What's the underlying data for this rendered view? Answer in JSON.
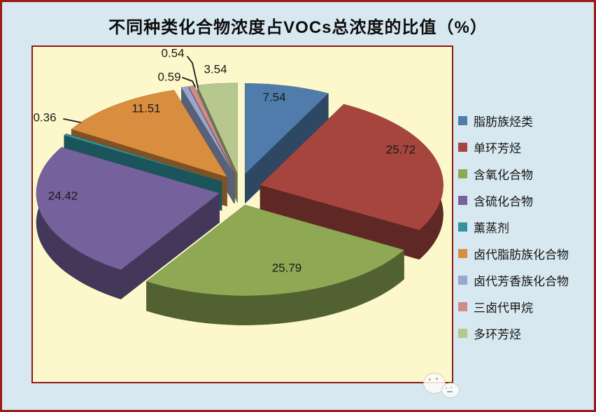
{
  "page": {
    "background_color": "#d8e8f0",
    "outer_border_color": "#9e1a18"
  },
  "chart": {
    "plot_background_color": "#fcf8cb",
    "plot_border_color": "#8c1a16",
    "label_text_color": "#1a1a1a"
  },
  "chart_data": {
    "type": "pie",
    "style": "3d-exploded",
    "title": "不同种类化合物浓度占VOCs总浓度的比值（%）",
    "unit": "%",
    "legend_position": "right",
    "data_labels": "value",
    "categories": [
      "脂肪族烃类",
      "单环芳烃",
      "含氧化合物",
      "含硫化合物",
      "薰蒸剂",
      "卤代脂肪族化合物",
      "卤代芳香族化合物",
      "三卤代甲烷",
      "多环芳烃"
    ],
    "values": [
      7.54,
      25.72,
      25.79,
      24.42,
      0.36,
      11.51,
      0.59,
      0.54,
      3.54
    ],
    "colors": [
      "#4f7cab",
      "#a6453e",
      "#8ea854",
      "#75619b",
      "#31919f",
      "#d98d3f",
      "#98a7cd",
      "#cd8b8b",
      "#b6c88e"
    ]
  }
}
